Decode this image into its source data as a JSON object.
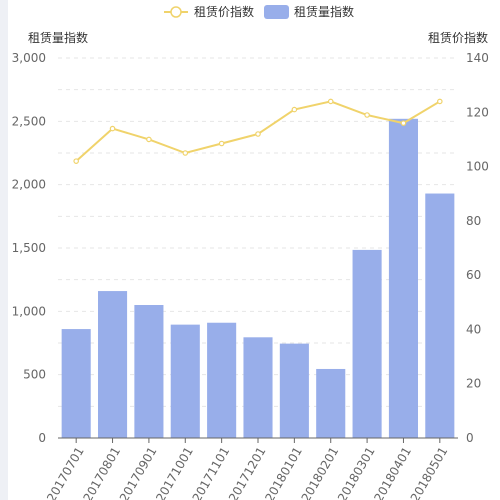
{
  "chart_data": {
    "type": "bar",
    "categories": [
      "20170701",
      "20170801",
      "20170901",
      "20171001",
      "20171101",
      "20171201",
      "20180101",
      "20180201",
      "20180301",
      "20180401",
      "20180501"
    ],
    "series": [
      {
        "name": "租赁量指数",
        "type": "bar",
        "axis": "left",
        "values": [
          860,
          1160,
          1050,
          895,
          910,
          795,
          745,
          545,
          1485,
          2520,
          1930
        ]
      },
      {
        "name": "租赁价指数",
        "type": "line",
        "axis": "right",
        "values": [
          102,
          114,
          110,
          105,
          108.5,
          112,
          121,
          124,
          119,
          116,
          124
        ]
      }
    ],
    "ylabel": "租赁量指数",
    "y2label": "租赁价指数",
    "ylim": [
      0,
      3000
    ],
    "y2lim": [
      0,
      140
    ],
    "yticks": [
      "0",
      "500",
      "1,000",
      "1,500",
      "2,000",
      "2,500",
      "3,000"
    ],
    "y2ticks": [
      "0",
      "20",
      "40",
      "60",
      "80",
      "100",
      "120",
      "140"
    ],
    "colors": {
      "bar": "#98aeea",
      "line": "#f0d36b",
      "grid": "#e6e6e6",
      "axis": "#666666"
    },
    "grid": true,
    "legend": "top-center"
  }
}
